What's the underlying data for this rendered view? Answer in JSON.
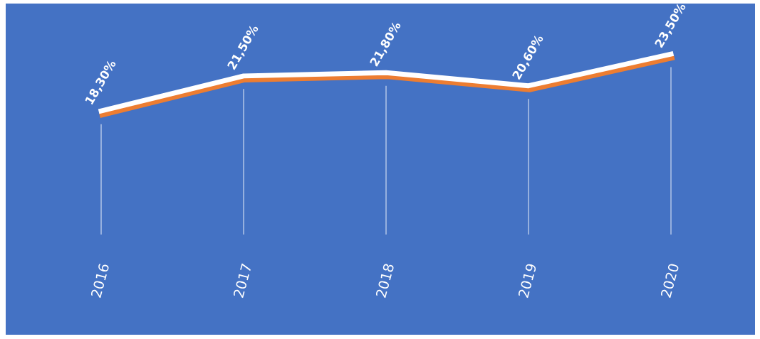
{
  "chart_data": {
    "type": "line",
    "categories": [
      "2016",
      "2017",
      "2018",
      "2019",
      "2020"
    ],
    "series": [
      {
        "color": "#ffffff",
        "values": [
          18.3,
          21.5,
          21.8,
          20.6,
          23.5
        ],
        "value_labels": [
          "18,30%",
          "21,50%",
          "21,80%",
          "20,60%",
          "23,50%"
        ]
      }
    ],
    "tick_labels": "x",
    "grid": "x",
    "legend": false,
    "marker": "none",
    "line_style": "solid"
  }
}
